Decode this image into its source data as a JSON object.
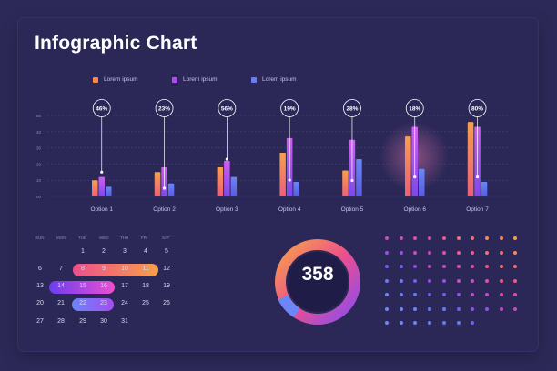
{
  "title": "Infographic Chart",
  "legend": [
    "Lorem ipsum",
    "Lorem ipsum",
    "Lorem ipsum"
  ],
  "colors": {
    "orange": "#f68a4c",
    "violet": "#b24cf2",
    "blue": "#6a7cf5",
    "pink": "#ec4f8d"
  },
  "chart_data": {
    "type": "bar",
    "title": "Infographic Chart",
    "categories": [
      "Option 1",
      "Option 2",
      "Option 3",
      "Option 4",
      "Option 5",
      "Option 6",
      "Option 7"
    ],
    "series": [
      {
        "name": "Lorem ipsum",
        "values": [
          10,
          15,
          18,
          27,
          16,
          37,
          46
        ]
      },
      {
        "name": "Lorem ipsum",
        "values": [
          12,
          18,
          22,
          36,
          35,
          43,
          43
        ]
      },
      {
        "name": "Lorem ipsum",
        "values": [
          6,
          8,
          12,
          9,
          23,
          17,
          9
        ]
      }
    ],
    "ylim": [
      0,
      50
    ],
    "yticks": [
      0,
      10,
      20,
      30,
      40,
      50
    ],
    "ytick_labels": [
      "00",
      "10",
      "20",
      "30",
      "40",
      "50"
    ],
    "percent_labels": [
      "46%",
      "23%",
      "56%",
      "19%",
      "28%",
      "18%",
      "80%"
    ],
    "grid": true,
    "legend_position": "top"
  },
  "calendar": {
    "headers": [
      "SUN",
      "MON",
      "TUE",
      "WED",
      "THU",
      "FRI",
      "SAT"
    ],
    "weeks": [
      [
        "",
        "",
        "1",
        "2",
        "3",
        "4",
        "5"
      ],
      [
        "6",
        "7",
        "8",
        "9",
        "10",
        "11",
        "12"
      ],
      [
        "13",
        "14",
        "15",
        "16",
        "17",
        "18",
        "19"
      ],
      [
        "20",
        "21",
        "22",
        "23",
        "24",
        "25",
        "26"
      ],
      [
        "27",
        "28",
        "29",
        "30",
        "31",
        "",
        ""
      ]
    ]
  },
  "donut": {
    "value": "358"
  }
}
